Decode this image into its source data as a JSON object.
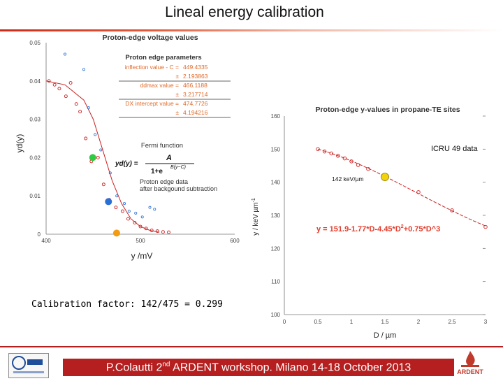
{
  "slide": {
    "title": "Lineal energy calibration",
    "calibration_text": "Calibration factor: 142/475 = 0.299",
    "footer_prefix": "P.Colautti 2",
    "footer_sup": "nd",
    "footer_suffix": " ARDENT workshop. Milano 14-18 October 2013",
    "logo_right_text": "ARDENT"
  },
  "colors": {
    "accent": "#b51f1f",
    "curve": "#cc2222",
    "blue": "#2a6fd6",
    "green": "#2ecc40",
    "orange": "#f39c12",
    "yellow": "#f1d30b"
  },
  "chart_data": [
    {
      "type": "scatter",
      "title": "Proton-edge voltage values",
      "xlabel": "y /mV",
      "ylabel": "yd(y)",
      "xlim": [
        400,
        600
      ],
      "ylim": [
        0,
        0.05
      ],
      "xticks": [
        "400",
        "500",
        "600"
      ],
      "yticks": [
        "0",
        "0.01",
        "0.02",
        "0.03",
        "0.04",
        "0.05"
      ],
      "series": [
        {
          "name": "Proton edge data after background subtraction",
          "marker": "circle",
          "x": [
            403,
            409,
            414,
            421,
            426,
            432,
            436,
            442,
            448,
            455,
            461,
            467,
            474,
            481,
            487,
            494,
            500,
            506,
            512,
            518,
            524,
            530
          ],
          "y": [
            0.04,
            0.039,
            0.038,
            0.036,
            0.0395,
            0.034,
            0.032,
            0.025,
            0.019,
            0.02,
            0.013,
            0.009,
            0.007,
            0.006,
            0.004,
            0.003,
            0.002,
            0.0015,
            0.001,
            0.0008,
            0.0006,
            0.0005
          ]
        },
        {
          "name": "background",
          "marker": "circle-blue",
          "x": [
            420,
            440,
            445,
            452,
            458,
            468,
            475,
            483,
            488,
            495,
            502,
            510,
            515
          ],
          "y": [
            0.047,
            0.043,
            0.033,
            0.026,
            0.022,
            0.016,
            0.01,
            0.008,
            0.006,
            0.0055,
            0.0045,
            0.007,
            0.0065
          ]
        },
        {
          "name": "Fermi function",
          "marker": "line",
          "x": [
            400,
            420,
            440,
            450,
            460,
            470,
            480,
            490,
            500,
            510,
            520
          ],
          "y": [
            0.04,
            0.039,
            0.035,
            0.03,
            0.022,
            0.014,
            0.008,
            0.004,
            0.002,
            0.001,
            0.0005
          ]
        }
      ],
      "markers": [
        {
          "label": "inflection",
          "x": 449.4335,
          "y": 0.02,
          "color": "green"
        },
        {
          "label": "ddmax",
          "x": 466.1188,
          "y": 0.0085,
          "color": "blue"
        },
        {
          "label": "DX intercept",
          "x": 474.7726,
          "y": 0.0003,
          "color": "orange"
        }
      ],
      "legend": {
        "title": "Proton edge parameters",
        "rows": [
          {
            "label": "inflection value - C =",
            "value": "449.4335"
          },
          {
            "label": "±",
            "value": "2.193863"
          },
          {
            "label": "ddmax value =",
            "value": "466.1188"
          },
          {
            "label": "±",
            "value": "3.217714"
          },
          {
            "label": "DX intercept value =",
            "value": "474.7726"
          },
          {
            "label": "±",
            "value": "4.194216"
          }
        ],
        "fermi_label": "Fermi function",
        "formula_lhs": "yd(y) =",
        "formula_num": "A",
        "formula_den": "1+e",
        "formula_exp": "B(y−C)",
        "data_label_1": "Proton edge data",
        "data_label_2": "after backgound subtraction"
      }
    },
    {
      "type": "line",
      "title": "Proton-edge y-values in propane-TE sites",
      "xlabel": "D / µm",
      "ylabel": "y / keV µm",
      "ylabel_sup": "-1",
      "xlim": [
        0,
        3
      ],
      "ylim": [
        100,
        160
      ],
      "xticks": [
        "0",
        "0.5",
        "1",
        "1.5",
        "2",
        "2.5",
        "3"
      ],
      "yticks": [
        "100",
        "110",
        "120",
        "130",
        "140",
        "150",
        "160"
      ],
      "series": [
        {
          "name": "ICRU 49 data",
          "marker": "circle",
          "x": [
            0.5,
            0.6,
            0.7,
            0.8,
            0.9,
            1.0,
            1.1,
            1.25,
            2.0,
            2.5,
            3.0
          ],
          "y": [
            150.0,
            149.3,
            148.7,
            148.0,
            147.2,
            146.3,
            145.2,
            144.0,
            137.0,
            131.5,
            126.5
          ]
        }
      ],
      "point": {
        "label": "142 keV/µm",
        "x": 1.5,
        "y": 141.6
      },
      "annotation": "ICRU 49 data",
      "equation": "y = 151.9-1.77*D-4.45*D",
      "equation_sup": "2",
      "equation_tail": "+0.75*D^3"
    }
  ]
}
